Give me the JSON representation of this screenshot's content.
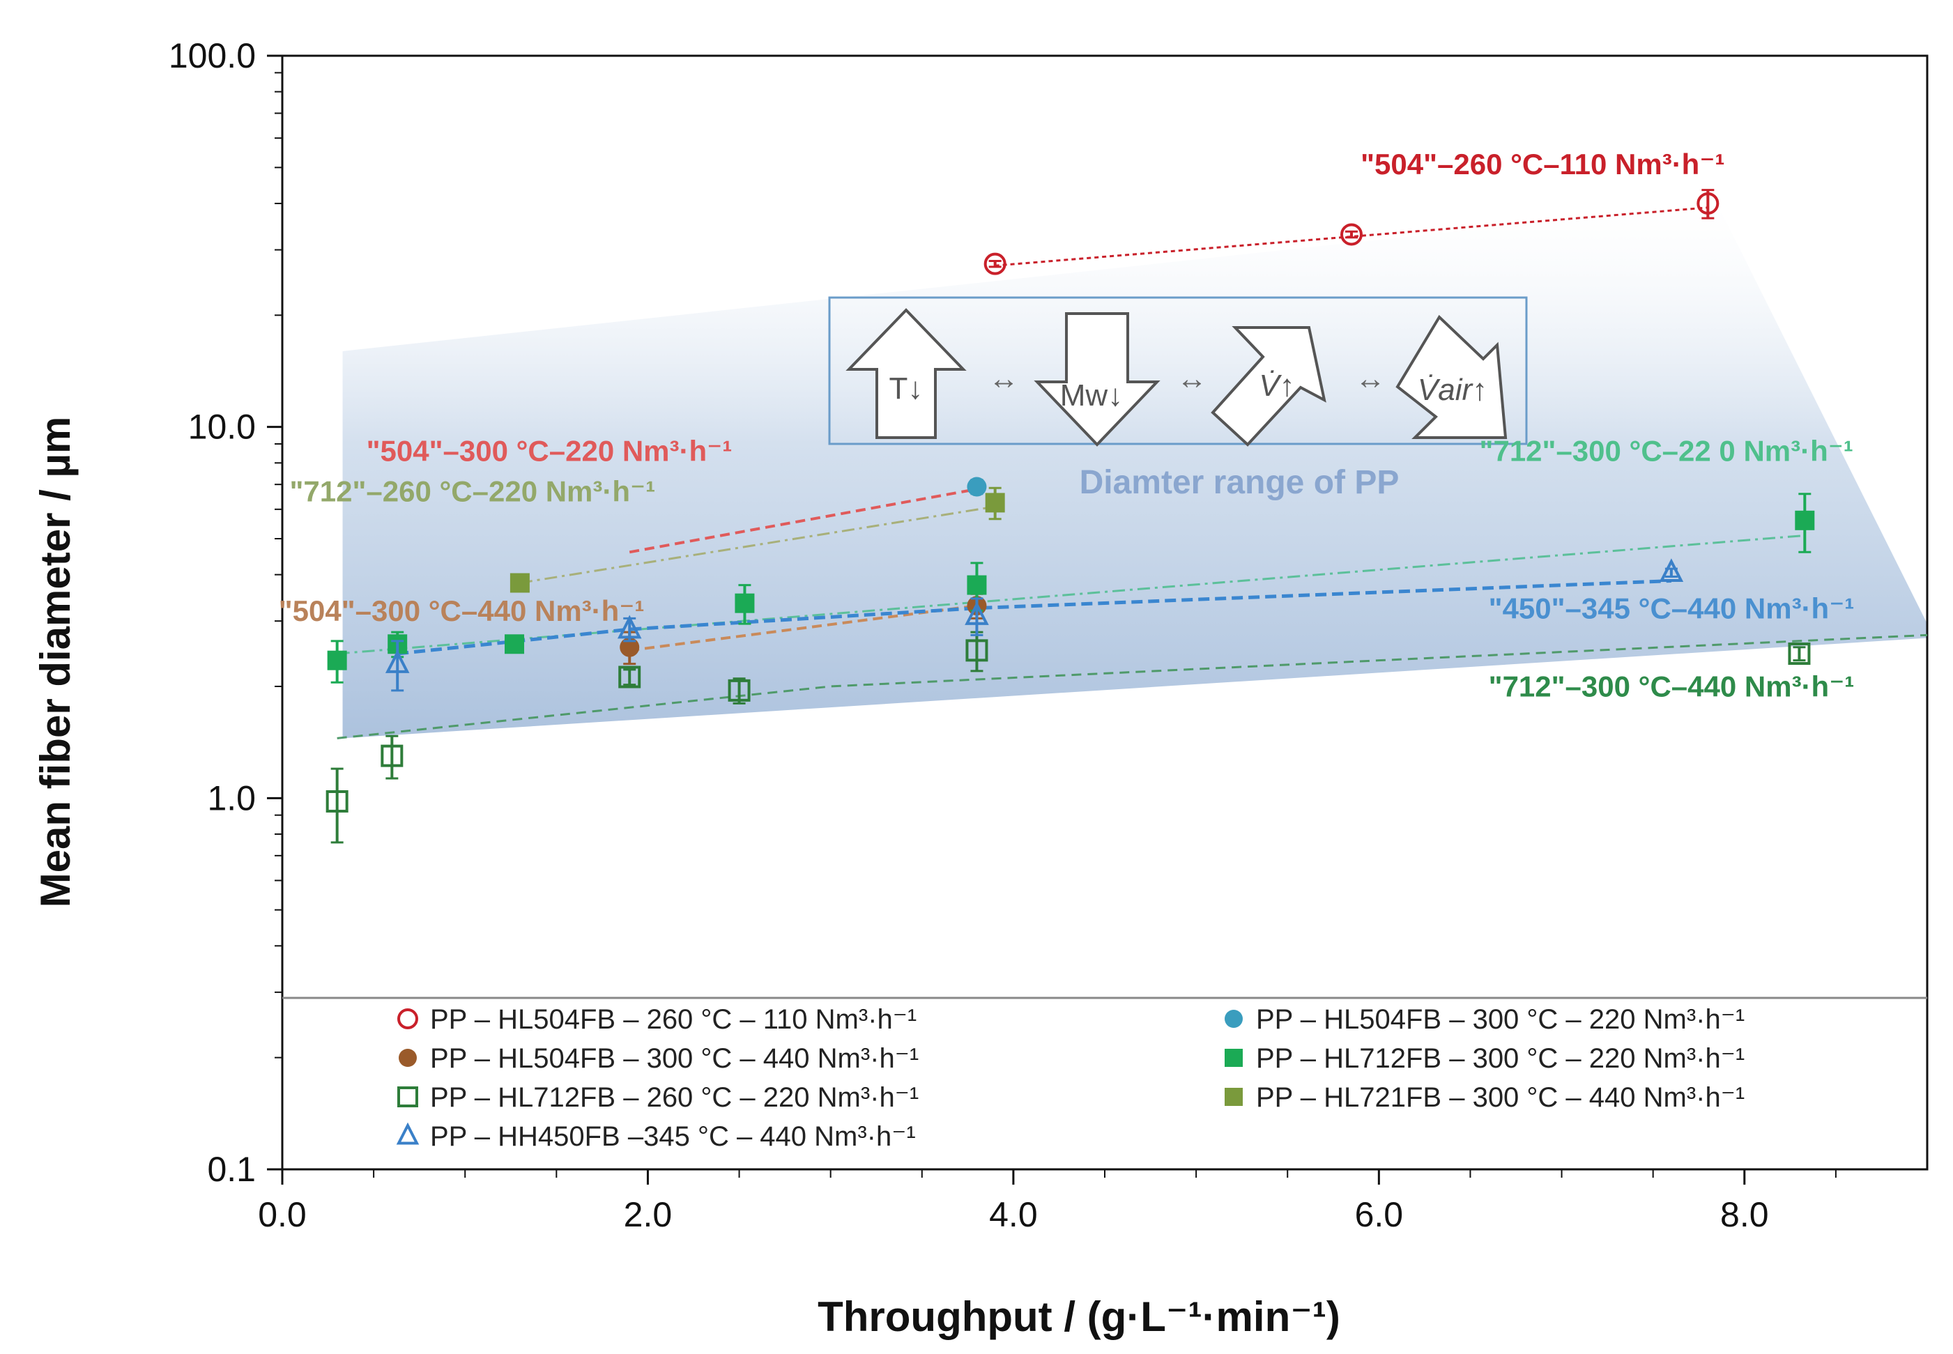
{
  "chart_data": {
    "type": "scatter",
    "xlabel": "Throughput / (g·L⁻¹·min⁻¹)",
    "ylabel": "Mean fiber diameter /  µm",
    "xlim": [
      0,
      9
    ],
    "ylim": [
      0.1,
      100
    ],
    "y_scale": "log",
    "x_ticks": [
      "0.0",
      "2.0",
      "4.0",
      "6.0",
      "8.0"
    ],
    "y_ticks": [
      "0.1",
      "1.0",
      "10.0",
      "100.0"
    ],
    "legend_position": "bottom",
    "series": [
      {
        "name": "PP – HL504FB – 260 °C – 110 Nm³·h⁻¹",
        "marker": "open-circle",
        "color": "#C9202A",
        "points": [
          [
            3.9,
            27.5
          ],
          [
            5.85,
            33.0
          ],
          [
            7.8,
            40.0
          ]
        ],
        "err": [
          0.5,
          0.6,
          3.5
        ]
      },
      {
        "name": "PP – HL504FB – 300 °C – 220 Nm³·h⁻¹",
        "marker": "filled-circle",
        "color": "#3A9DBE",
        "points": [
          [
            3.8,
            6.9
          ]
        ],
        "err": [
          0.3
        ]
      },
      {
        "name": "PP – HL504FB – 300 °C – 440 Nm³·h⁻¹",
        "marker": "filled-circle",
        "color": "#9A5A2A",
        "points": [
          [
            1.9,
            2.55
          ],
          [
            3.8,
            3.3
          ]
        ],
        "err": [
          0.25,
          0.25
        ]
      },
      {
        "name": "PP – HL712FB – 300 °C – 220 Nm³·h⁻¹",
        "marker": "filled-square",
        "color": "#1BAA55",
        "points": [
          [
            0.3,
            2.35
          ],
          [
            0.63,
            2.6
          ],
          [
            1.27,
            2.6
          ],
          [
            2.53,
            3.35
          ],
          [
            3.8,
            3.75
          ],
          [
            8.33,
            5.6
          ]
        ],
        "err": [
          0.3,
          0.2,
          0.1,
          0.4,
          0.55,
          1.0
        ]
      },
      {
        "name": "PP – HL712FB – 260 °C – 220 Nm³·h⁻¹",
        "marker": "open-square",
        "color": "#2E7D3A",
        "points": [
          [
            0.3,
            0.98
          ],
          [
            0.6,
            1.3
          ],
          [
            1.9,
            2.12
          ],
          [
            2.5,
            1.95
          ],
          [
            3.8,
            2.5
          ],
          [
            8.3,
            2.45
          ]
        ],
        "err": [
          0.22,
          0.17,
          0.1,
          0.15,
          0.3,
          0.1
        ]
      },
      {
        "name": "PP – HL721FB – 300 °C – 440 Nm³·h⁻¹",
        "marker": "filled-square",
        "color": "#7A9A3C",
        "points": [
          [
            1.3,
            3.8
          ],
          [
            3.9,
            6.25
          ]
        ],
        "err": [
          0.1,
          0.6
        ]
      },
      {
        "name": "PP – HH450FB –345 °C – 440 Nm³·h⁻¹",
        "marker": "open-triangle",
        "color": "#3A80C8",
        "points": [
          [
            0.63,
            2.3
          ],
          [
            1.9,
            2.85
          ],
          [
            3.8,
            3.1
          ],
          [
            7.6,
            4.05
          ]
        ],
        "err": [
          0.35,
          0.2,
          0.35,
          0.1
        ]
      }
    ],
    "annotations": [
      {
        "text": "\"504\"–260 °C–110 Nm³·h⁻¹",
        "color": "#C9202A",
        "x": 5.9,
        "y": 48
      },
      {
        "text": "\"504\"–300 °C–220 Nm³·h⁻¹",
        "color": "#E05A5A",
        "x": 0.46,
        "y": 8.1
      },
      {
        "text": "\"712\"–260 °C–220 Nm³·h⁻¹",
        "color": "#93A86A",
        "x": 0.04,
        "y": 6.3
      },
      {
        "text": "\"504\"–300 °C–440 Nm³·h⁻¹",
        "color": "#B9825A",
        "x": -0.02,
        "y": 3.0
      },
      {
        "text": "\"712\"–300 °C–22 0 Nm³·h⁻¹",
        "color": "#4FC08C",
        "x": 6.55,
        "y": 8.1
      },
      {
        "text": "\"450\"–345 °C–440 Nm³·h⁻¹",
        "color": "#4A90D0",
        "x": 6.6,
        "y": 3.05
      },
      {
        "text": "\"712\"–300 °C–440 Nm³·h⁻¹",
        "color": "#2E8B4A",
        "x": 6.6,
        "y": 1.88
      }
    ],
    "shaded_region_label": "Diamter range of PP",
    "inset_symbols": [
      "T↓",
      "↔",
      "Mw↓",
      "↔",
      "V̇↑",
      "↔",
      "V̇air↑"
    ]
  }
}
